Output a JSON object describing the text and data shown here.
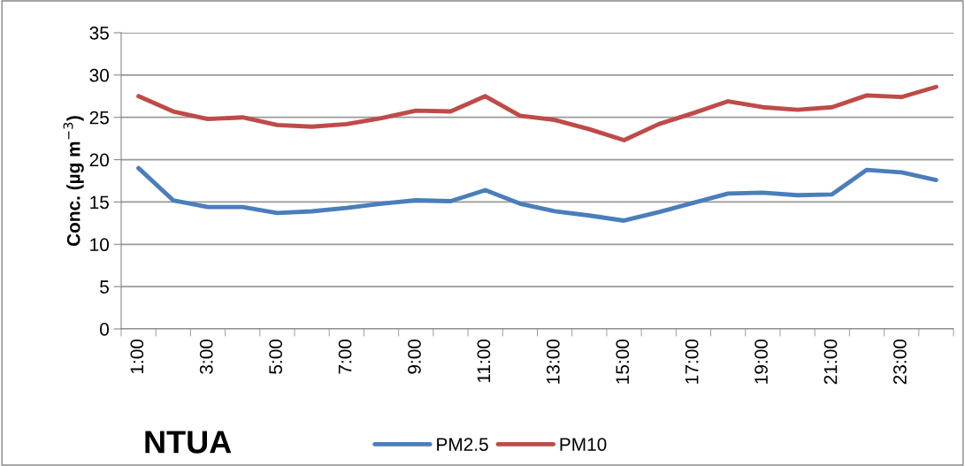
{
  "chart_data": {
    "type": "line",
    "ylabel": "Conc. (µg m$^{−3}$)",
    "annotations": [
      "NTUA"
    ],
    "categories": [
      "1:00",
      null,
      "3:00",
      null,
      "5:00",
      null,
      "7:00",
      null,
      "9:00",
      null,
      "11:00",
      null,
      "13:00",
      null,
      "15:00",
      null,
      "17:00",
      null,
      "19:00",
      null,
      "21:00",
      null,
      "23:00",
      null
    ],
    "series": [
      {
        "name": "PM2.5",
        "color": "#4a7ebb",
        "values": [
          19.0,
          15.2,
          14.4,
          14.4,
          13.7,
          13.9,
          14.3,
          14.8,
          15.2,
          15.1,
          16.4,
          14.8,
          13.9,
          13.4,
          12.8,
          13.8,
          14.9,
          16.0,
          16.1,
          15.8,
          15.9,
          18.8,
          18.5,
          17.6
        ]
      },
      {
        "name": "PM10",
        "color": "#be4b48",
        "values": [
          27.5,
          25.7,
          24.8,
          25.0,
          24.1,
          23.9,
          24.2,
          24.9,
          25.8,
          25.7,
          27.5,
          25.2,
          24.7,
          23.6,
          22.3,
          24.2,
          25.5,
          26.9,
          26.2,
          25.9,
          26.2,
          27.6,
          27.4,
          28.6
        ]
      }
    ],
    "ylim": [
      0,
      35
    ],
    "yticks": [
      0,
      5,
      10,
      15,
      20,
      25,
      30,
      35
    ],
    "grid": "y",
    "legend": "bottom",
    "marker": "none",
    "line_style": "solid"
  }
}
